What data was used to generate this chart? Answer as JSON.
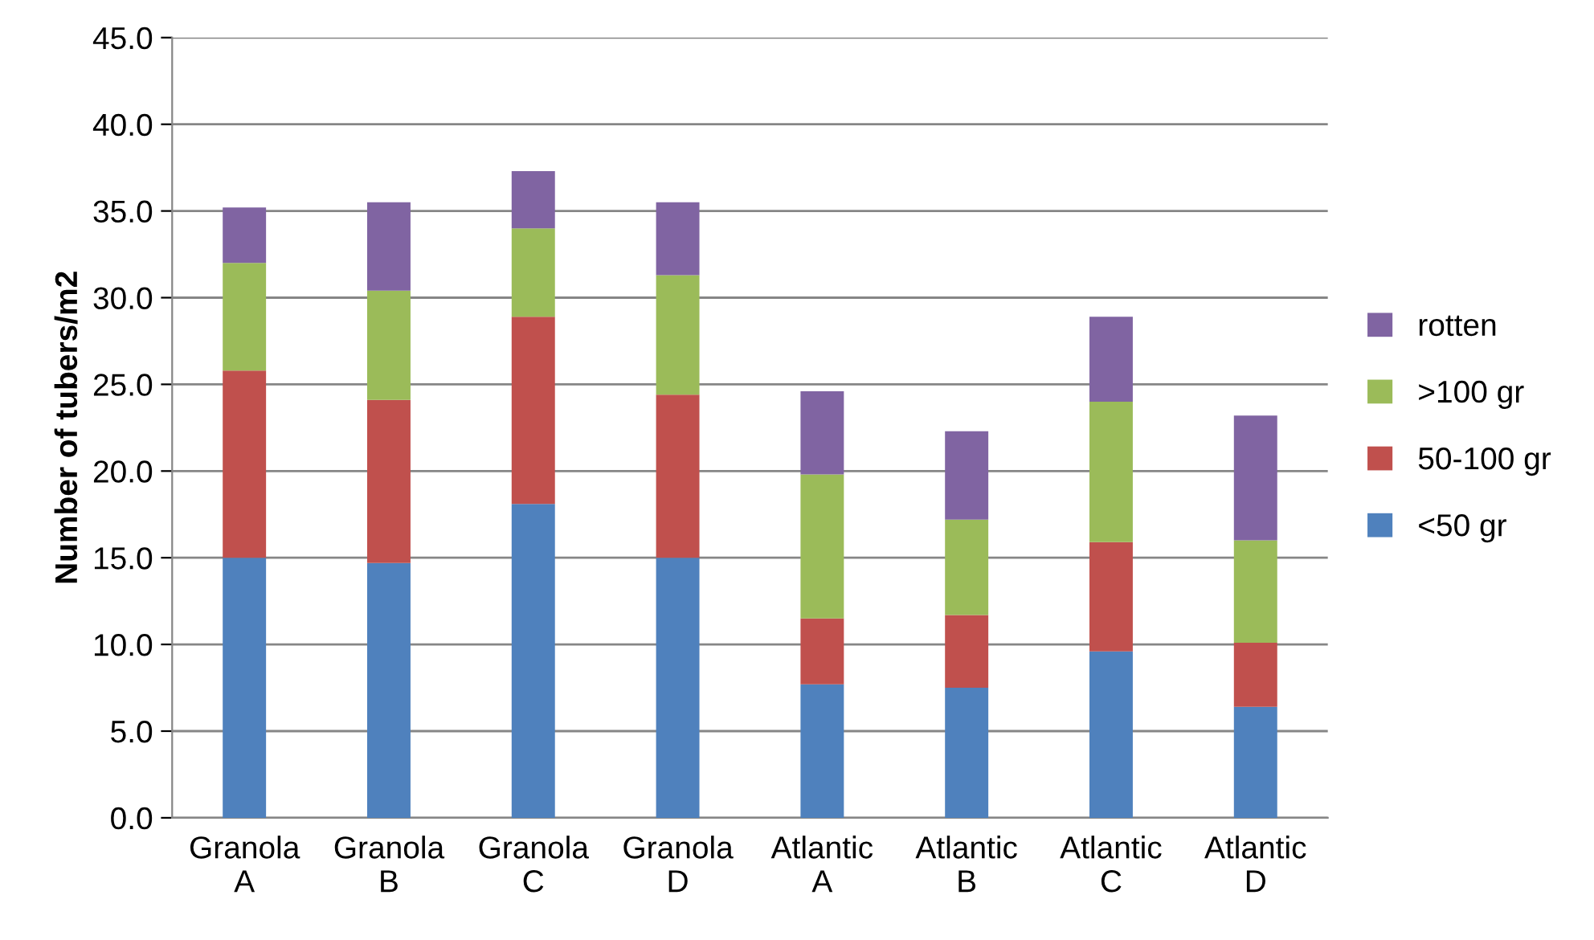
{
  "chart_data": {
    "type": "bar",
    "stacked": true,
    "ylabel": "Number of tubers/m2",
    "categories": [
      "Granola\nA",
      "Granola\nB",
      "Granola\nC",
      "Granola\nD",
      "Atlantic\nA",
      "Atlantic\nB",
      "Atlantic\nC",
      "Atlantic\nD"
    ],
    "series": [
      {
        "name": "<50 gr",
        "color": "#4f81bd",
        "values": [
          15.0,
          14.7,
          18.1,
          15.0,
          7.7,
          7.5,
          9.6,
          6.4
        ]
      },
      {
        "name": "50-100 gr",
        "color": "#c0504d",
        "values": [
          10.8,
          9.4,
          10.8,
          9.4,
          3.8,
          4.2,
          6.3,
          3.7
        ]
      },
      {
        "name": ">100 gr",
        "color": "#9bbb59",
        "values": [
          6.2,
          6.3,
          5.1,
          6.9,
          8.3,
          5.5,
          8.1,
          5.9
        ]
      },
      {
        "name": "rotten",
        "color": "#8064a2",
        "values": [
          3.2,
          5.1,
          3.3,
          4.2,
          4.8,
          5.1,
          4.9,
          7.2
        ]
      }
    ],
    "ylim": [
      0,
      45
    ],
    "yticks": [
      {
        "value": 0,
        "label": "0.0"
      },
      {
        "value": 5,
        "label": "5.0"
      },
      {
        "value": 10,
        "label": "10.0"
      },
      {
        "value": 15,
        "label": "15.0"
      },
      {
        "value": 20,
        "label": "20.0"
      },
      {
        "value": 25,
        "label": "25.0"
      },
      {
        "value": 30,
        "label": "30.0"
      },
      {
        "value": 35,
        "label": "35.0"
      },
      {
        "value": 40,
        "label": "40.0"
      },
      {
        "value": 45,
        "label": "45.0"
      }
    ],
    "grid": "y",
    "legend": "right"
  }
}
